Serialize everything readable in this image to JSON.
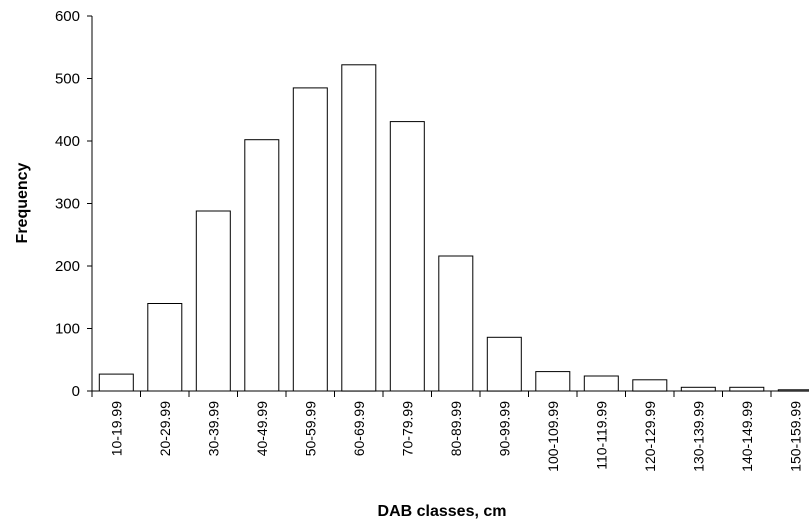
{
  "chart_data": {
    "type": "bar",
    "title": "",
    "xlabel": "DAB classes, cm",
    "ylabel": "Frequency",
    "ylim": [
      0,
      600
    ],
    "yticks": [
      0,
      100,
      200,
      300,
      400,
      500,
      600
    ],
    "categories": [
      "10-19.99",
      "20-29.99",
      "30-39.99",
      "40-49.99",
      "50-59.99",
      "60-69.99",
      "70-79.99",
      "80-89.99",
      "90-99.99",
      "100-109.99",
      "110-119.99",
      "120-129.99",
      "130-139.99",
      "140-149.99",
      "150-159.99"
    ],
    "values": [
      27,
      140,
      288,
      402,
      485,
      522,
      431,
      216,
      86,
      31,
      24,
      18,
      6,
      6,
      2
    ],
    "grid": false,
    "legend": "none",
    "bar_fill": "#ffffff",
    "bar_stroke": "#000000"
  }
}
